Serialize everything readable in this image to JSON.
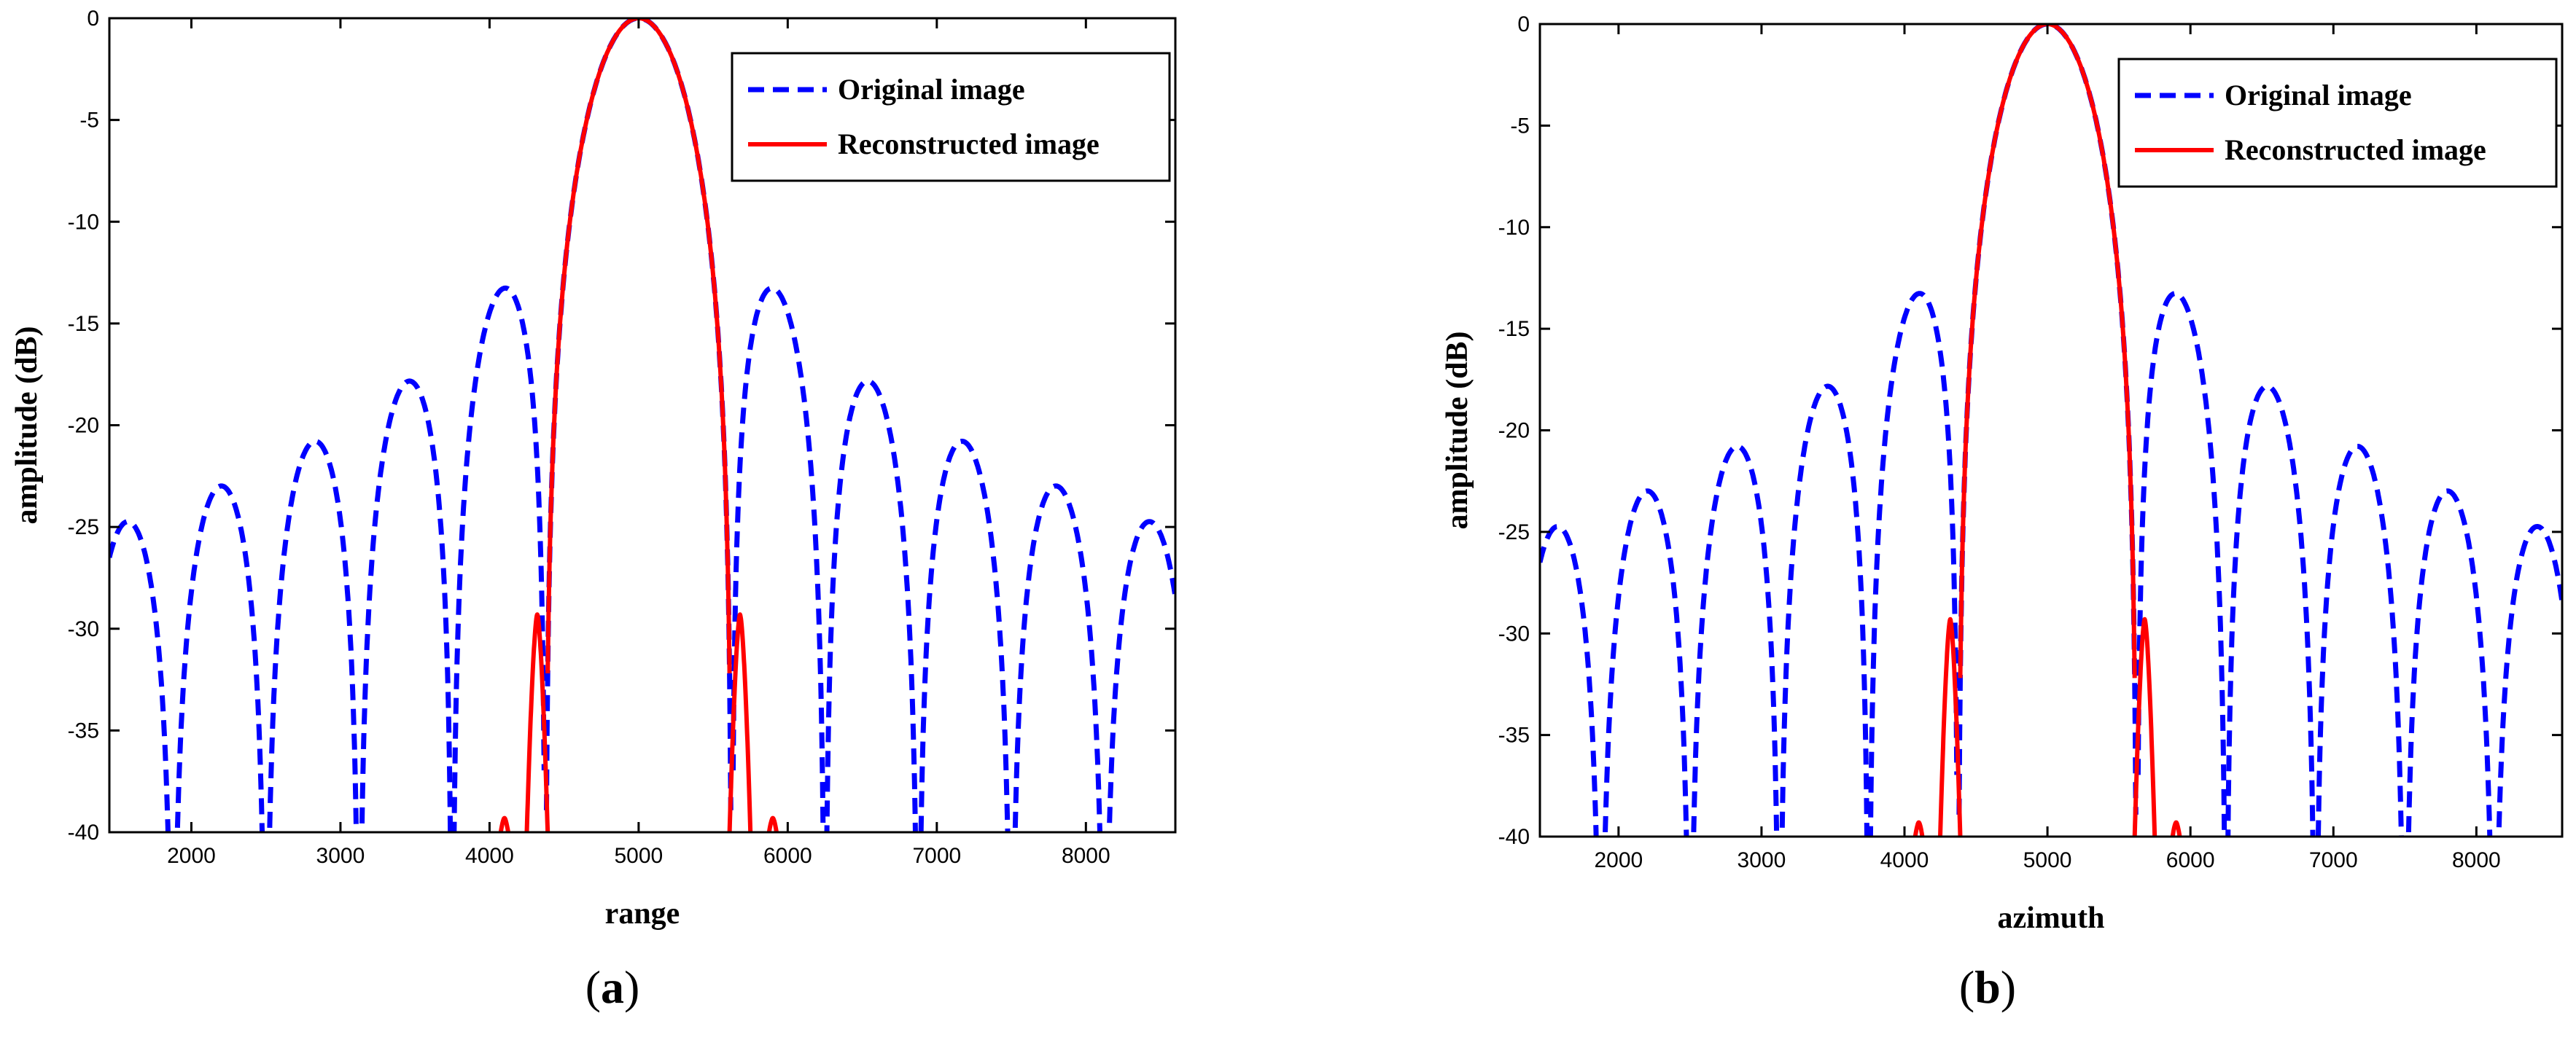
{
  "chart_data": [
    {
      "type": "line",
      "panel": "(a)",
      "caption_letter": "a",
      "xlabel": "range",
      "ylabel": "amplitude (dB)",
      "xlim": [
        1450,
        8600
      ],
      "ylim": [
        -40,
        0
      ],
      "xticks": [
        2000,
        3000,
        4000,
        5000,
        6000,
        7000,
        8000
      ],
      "yticks": [
        0,
        -5,
        -10,
        -15,
        -20,
        -25,
        -30,
        -35,
        -40
      ],
      "legend_position": "top-right",
      "series": [
        {
          "name": "Original image",
          "color": "#0000ff",
          "style": "dashed",
          "model": "sinc",
          "center": 5000,
          "first_null_spacing": 625
        },
        {
          "name": "Reconstructed image",
          "color": "#ff0000",
          "style": "solid",
          "model": "sinc_sidelobe_suppressed",
          "center": 5000,
          "first_null_spacing": 625,
          "peaks": [
            {
              "x": 4320,
              "y": -29.3
            },
            {
              "x": 5680,
              "y": -29.3
            },
            {
              "x": 4100,
              "y": -39.3
            },
            {
              "x": 5900,
              "y": -39.3
            }
          ]
        }
      ]
    },
    {
      "type": "line",
      "panel": "(b)",
      "caption_letter": "b",
      "xlabel": "azimuth",
      "ylabel": "amplitude (dB)",
      "xlim": [
        1450,
        8600
      ],
      "ylim": [
        -40,
        0
      ],
      "xticks": [
        2000,
        3000,
        4000,
        5000,
        6000,
        7000,
        8000
      ],
      "yticks": [
        0,
        -5,
        -10,
        -15,
        -20,
        -25,
        -30,
        -35,
        -40
      ],
      "legend_position": "top-right",
      "series": [
        {
          "name": "Original image",
          "color": "#0000ff",
          "style": "dashed",
          "model": "sinc",
          "center": 5000,
          "first_null_spacing": 625
        },
        {
          "name": "Reconstructed image",
          "color": "#ff0000",
          "style": "solid",
          "model": "sinc_sidelobe_suppressed",
          "center": 5000,
          "first_null_spacing": 625,
          "peaks": [
            {
              "x": 4320,
              "y": -29.3
            },
            {
              "x": 5680,
              "y": -29.3
            },
            {
              "x": 4100,
              "y": -39.3
            },
            {
              "x": 5900,
              "y": -39.3
            }
          ]
        }
      ]
    }
  ]
}
